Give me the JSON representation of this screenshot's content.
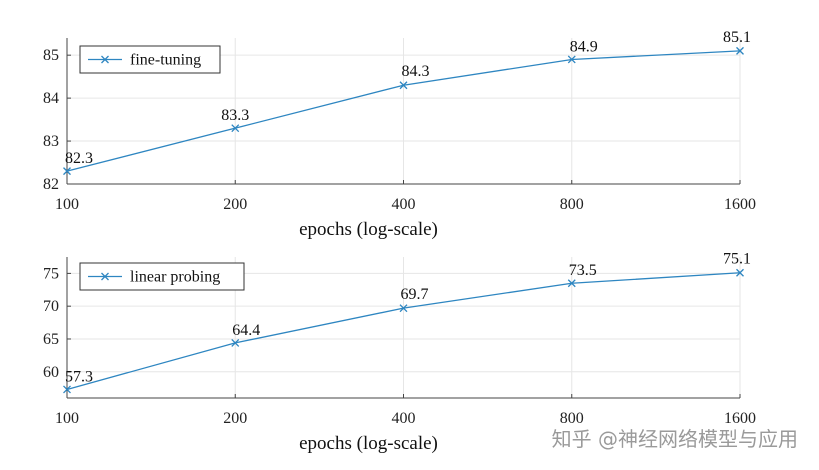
{
  "colors": {
    "series": "#2e86c1",
    "grid": "#e6e6e6",
    "axis": "#444444"
  },
  "watermark": "知乎 @神经网络模型与应用",
  "chart_data": [
    {
      "type": "line",
      "xscale": "log",
      "x": [
        100,
        200,
        400,
        800,
        1600
      ],
      "xticks": [
        "100",
        "200",
        "400",
        "800",
        "1600"
      ],
      "xlabel": "epochs (log-scale)",
      "ylabel": "",
      "ylim": [
        82,
        85.4
      ],
      "yticks": [
        "82",
        "83",
        "84",
        "85"
      ],
      "grid": true,
      "legend_position": "top-left",
      "series": [
        {
          "name": "fine-tuning",
          "values": [
            82.3,
            83.3,
            84.3,
            84.9,
            85.1
          ],
          "labels": [
            "82.3",
            "83.3",
            "84.3",
            "84.9",
            "85.1"
          ]
        }
      ]
    },
    {
      "type": "line",
      "xscale": "log",
      "x": [
        100,
        200,
        400,
        800,
        1600
      ],
      "xticks": [
        "100",
        "200",
        "400",
        "800",
        "1600"
      ],
      "xlabel": "epochs (log-scale)",
      "ylabel": "",
      "ylim": [
        56,
        77.5
      ],
      "yticks": [
        "60",
        "65",
        "70",
        "75"
      ],
      "grid": true,
      "legend_position": "top-left",
      "series": [
        {
          "name": "linear probing",
          "values": [
            57.3,
            64.4,
            69.7,
            73.5,
            75.1
          ],
          "labels": [
            "57.3",
            "64.4",
            "69.7",
            "73.5",
            "75.1"
          ]
        }
      ]
    }
  ]
}
